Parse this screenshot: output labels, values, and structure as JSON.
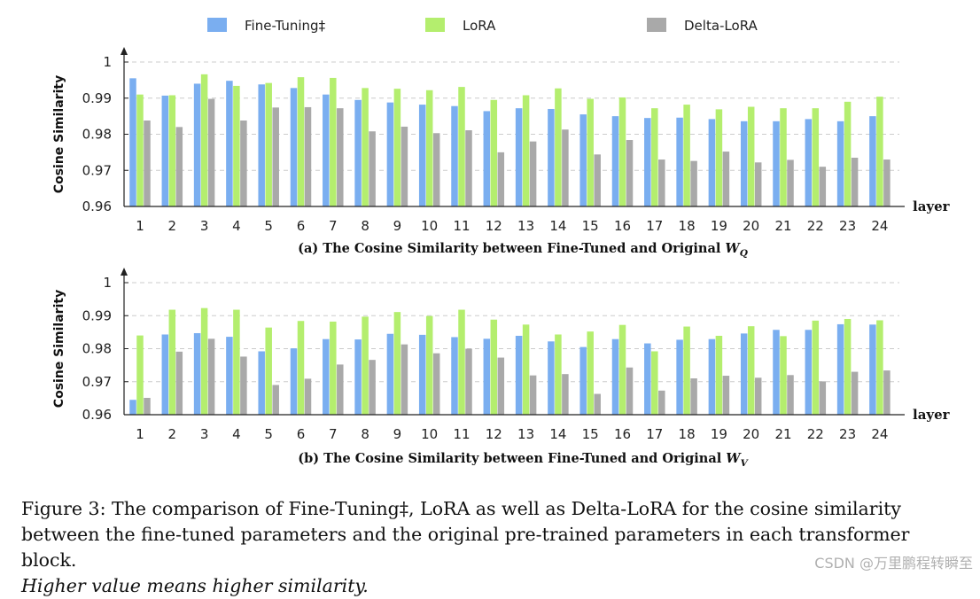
{
  "legend": [
    {
      "name": "Fine-Tuning‡",
      "color": "#7aaef0"
    },
    {
      "name": "LoRA",
      "color": "#b4ee6e"
    },
    {
      "name": "Delta-LoRA",
      "color": "#a9a9a9"
    }
  ],
  "chart_data": [
    {
      "type": "bar",
      "caption_text": "(a) The Cosine Similarity between Fine-Tuned and Original ",
      "caption_var": "W",
      "caption_sub": "Q",
      "ylabel": "Cosine Similarity",
      "xlabel": "layer",
      "ylim": [
        0.96,
        1.0
      ],
      "yticks": [
        0.96,
        0.97,
        0.98,
        0.99,
        1
      ],
      "categories": [
        "1",
        "2",
        "3",
        "4",
        "5",
        "6",
        "7",
        "8",
        "9",
        "10",
        "11",
        "12",
        "13",
        "14",
        "15",
        "16",
        "17",
        "18",
        "19",
        "20",
        "21",
        "22",
        "23",
        "24"
      ],
      "series": [
        {
          "name": "Fine-Tuning‡",
          "values": [
            0.9955,
            0.9907,
            0.994,
            0.9948,
            0.9938,
            0.9928,
            0.991,
            0.9895,
            0.9888,
            0.9882,
            0.9878,
            0.9864,
            0.9872,
            0.987,
            0.9855,
            0.985,
            0.9845,
            0.9846,
            0.9842,
            0.9836,
            0.9836,
            0.9842,
            0.9836,
            0.985
          ]
        },
        {
          "name": "LoRA",
          "values": [
            0.991,
            0.9908,
            0.9966,
            0.9934,
            0.9942,
            0.9958,
            0.9956,
            0.9928,
            0.9926,
            0.9922,
            0.9931,
            0.9895,
            0.9908,
            0.9927,
            0.9898,
            0.9902,
            0.9872,
            0.9882,
            0.9869,
            0.9876,
            0.9872,
            0.9872,
            0.989,
            0.9904
          ]
        },
        {
          "name": "Delta-LoRA",
          "values": [
            0.9838,
            0.982,
            0.9898,
            0.9838,
            0.9874,
            0.9875,
            0.9872,
            0.9808,
            0.9821,
            0.9803,
            0.9811,
            0.975,
            0.978,
            0.9813,
            0.9744,
            0.9784,
            0.973,
            0.9726,
            0.9752,
            0.9722,
            0.9729,
            0.971,
            0.9735,
            0.973
          ]
        }
      ]
    },
    {
      "type": "bar",
      "caption_text": "(b) The Cosine Similarity between Fine-Tuned and Original ",
      "caption_var": "W",
      "caption_sub": "V",
      "ylabel": "Cosine Similarity",
      "xlabel": "layer",
      "ylim": [
        0.96,
        1.0
      ],
      "yticks": [
        0.96,
        0.97,
        0.98,
        0.99,
        1
      ],
      "categories": [
        "1",
        "2",
        "3",
        "4",
        "5",
        "6",
        "7",
        "8",
        "9",
        "10",
        "11",
        "12",
        "13",
        "14",
        "15",
        "16",
        "17",
        "18",
        "19",
        "20",
        "21",
        "22",
        "23",
        "24"
      ],
      "series": [
        {
          "name": "Fine-Tuning‡",
          "values": [
            0.9645,
            0.9843,
            0.9847,
            0.9836,
            0.9792,
            0.9801,
            0.9829,
            0.9828,
            0.9845,
            0.9842,
            0.9835,
            0.983,
            0.9839,
            0.9822,
            0.9805,
            0.9829,
            0.9816,
            0.9827,
            0.9829,
            0.9846,
            0.9857,
            0.9857,
            0.9874,
            0.9873
          ]
        },
        {
          "name": "LoRA",
          "values": [
            0.984,
            0.9918,
            0.9923,
            0.9918,
            0.9864,
            0.9884,
            0.9882,
            0.9897,
            0.9911,
            0.9899,
            0.9918,
            0.9888,
            0.9873,
            0.9843,
            0.9852,
            0.9872,
            0.9792,
            0.9867,
            0.9839,
            0.9868,
            0.9838,
            0.9885,
            0.989,
            0.9886
          ]
        },
        {
          "name": "Delta-LoRA",
          "values": [
            0.9651,
            0.9791,
            0.983,
            0.9776,
            0.969,
            0.9709,
            0.9752,
            0.9766,
            0.9813,
            0.9786,
            0.98,
            0.9773,
            0.9719,
            0.9723,
            0.9663,
            0.9743,
            0.9673,
            0.971,
            0.9718,
            0.9712,
            0.972,
            0.9701,
            0.973,
            0.9734
          ]
        }
      ]
    }
  ],
  "figure_caption": {
    "line1": "Figure 3: The comparison of Fine-Tuning‡, LoRA as well as Delta-LoRA for the cosine similarity",
    "line2": "between the fine-tuned parameters and the original pre-trained parameters in each transformer block.",
    "line3": "Higher value means higher similarity."
  },
  "watermark": "CSDN @万里鹏程转瞬至"
}
